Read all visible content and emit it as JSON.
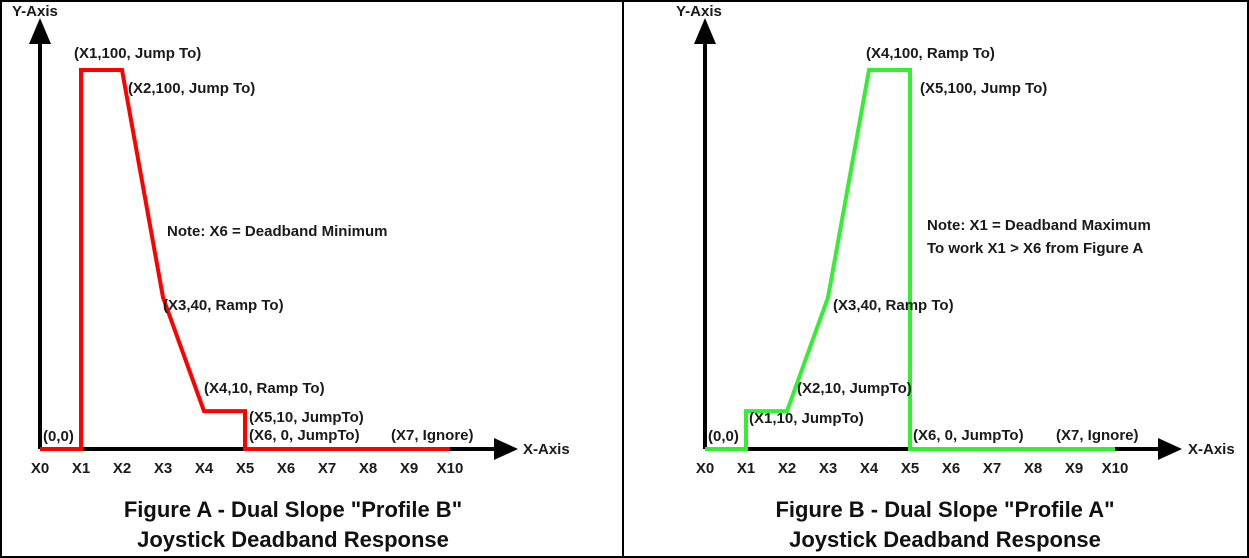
{
  "colors": {
    "axis": "#000000",
    "profile_b_line": "#ff0000",
    "profile_a_line": "#33ee33",
    "text": "#1a1a1a"
  },
  "figure_a": {
    "y_axis_label": "Y-Axis",
    "x_axis_label": "X-Axis",
    "x_ticks": [
      "X0",
      "X1",
      "X2",
      "X3",
      "X4",
      "X5",
      "X6",
      "X7",
      "X8",
      "X9",
      "X10"
    ],
    "curve": [
      {
        "x": 0,
        "y": 0
      },
      {
        "x": 1,
        "y": 0
      },
      {
        "x": 1,
        "y": 100
      },
      {
        "x": 2,
        "y": 100
      },
      {
        "x": 3,
        "y": 40
      },
      {
        "x": 4,
        "y": 10
      },
      {
        "x": 5,
        "y": 10
      },
      {
        "x": 5,
        "y": 0
      },
      {
        "x": 10,
        "y": 0
      }
    ],
    "annotations": {
      "origin": "(0,0)",
      "p1": "(X1,100, Jump To)",
      "p2": "(X2,100, Jump To)",
      "p3": "(X3,40, Ramp To)",
      "p4": "(X4,10, Ramp To)",
      "p5": "(X5,10, JumpTo)",
      "p6": "(X6, 0, JumpTo)",
      "p7": "(X7, Ignore)"
    },
    "note": "Note: X6 = Deadband Minimum",
    "caption_line1": "Figure A - Dual Slope \"Profile B\"",
    "caption_line2": "Joystick Deadband Response"
  },
  "figure_b": {
    "y_axis_label": "Y-Axis",
    "x_axis_label": "X-Axis",
    "x_ticks": [
      "X0",
      "X1",
      "X2",
      "X3",
      "X4",
      "X5",
      "X6",
      "X7",
      "X8",
      "X9",
      "X10"
    ],
    "curve": [
      {
        "x": 0,
        "y": 0
      },
      {
        "x": 1,
        "y": 0
      },
      {
        "x": 1,
        "y": 10
      },
      {
        "x": 2,
        "y": 10
      },
      {
        "x": 3,
        "y": 40
      },
      {
        "x": 4,
        "y": 100
      },
      {
        "x": 5,
        "y": 100
      },
      {
        "x": 5,
        "y": 0
      },
      {
        "x": 10,
        "y": 0
      }
    ],
    "annotations": {
      "origin": "(0,0)",
      "p1": "(X1,10, JumpTo)",
      "p2": "(X2,10, JumpTo)",
      "p3": "(X3,40, Ramp To)",
      "p4": "(X4,100, Ramp To)",
      "p5": "(X5,100, Jump To)",
      "p6": "(X6, 0, JumpTo)",
      "p7": "(X7, Ignore)"
    },
    "note_line1": "Note: X1 = Deadband Maximum",
    "note_line2": "To work X1 > X6 from Figure A",
    "caption_line1": "Figure B - Dual Slope \"Profile A\"",
    "caption_line2": "Joystick Deadband Response"
  }
}
